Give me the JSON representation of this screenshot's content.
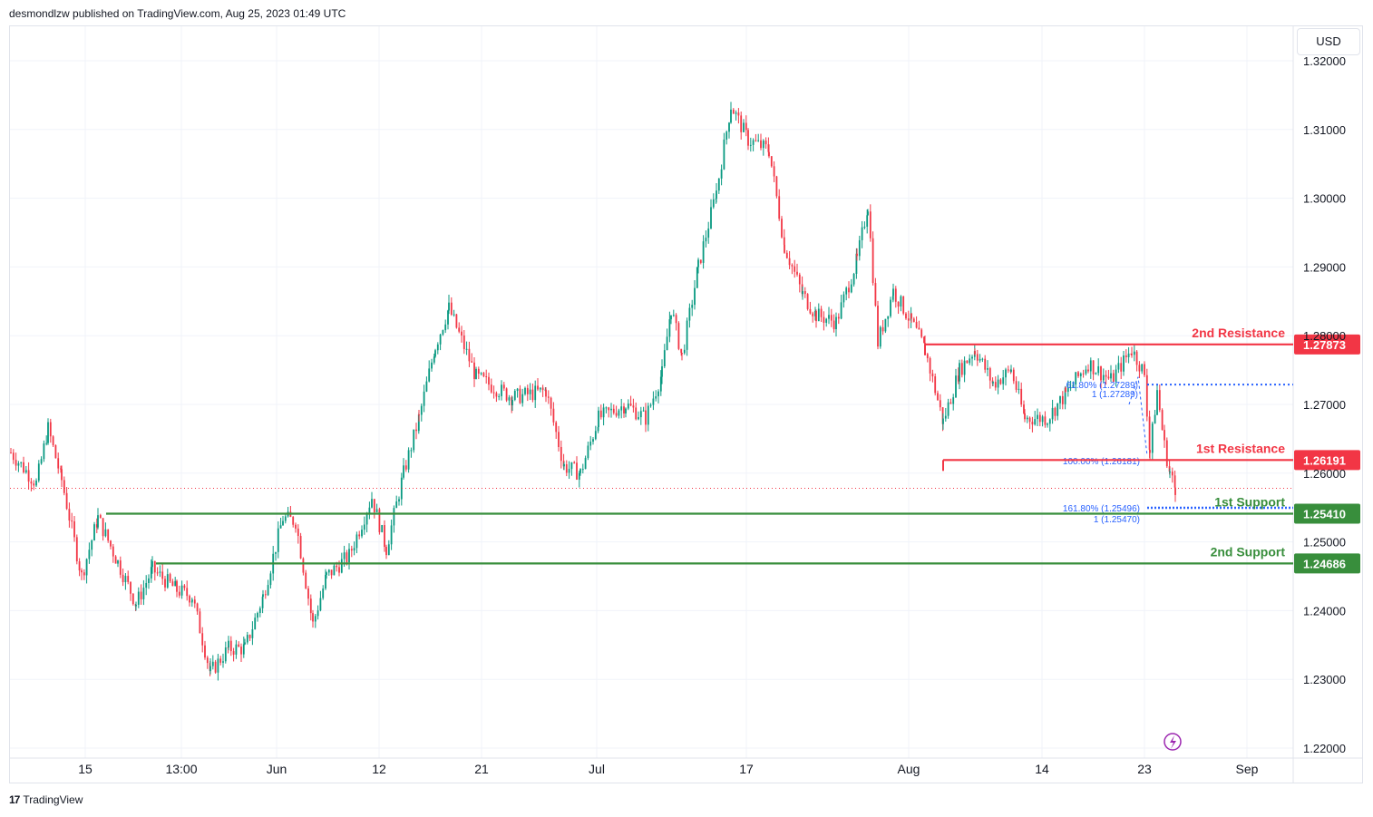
{
  "header": {
    "text": "desmondlzw published on TradingView.com, Aug 25, 2023 01:49 UTC"
  },
  "currency_button": {
    "label": "USD"
  },
  "footer": {
    "logo": "17",
    "brand": "TradingView"
  },
  "colors": {
    "up": "#089981",
    "down": "#f23645",
    "resistance": "#f23645",
    "support": "#388e3c",
    "fib": "#2962ff",
    "grid": "#f0f3fa",
    "text": "#131722",
    "lightning": "#9c27b0"
  },
  "chart_data": {
    "type": "candlestick",
    "title": "",
    "ylim": [
      1.22,
      1.323
    ],
    "y_ticks": [
      "1.32000",
      "1.31000",
      "1.30000",
      "1.29000",
      "1.28000",
      "1.27000",
      "1.26000",
      "1.25000",
      "1.24000",
      "1.23000",
      "1.22000"
    ],
    "x_ticks": [
      "15",
      "13:00",
      "Jun",
      "12",
      "21",
      "Jul",
      "17",
      "Aug",
      "14",
      "23",
      "Sep"
    ],
    "key_points": [
      [
        12,
        1.263
      ],
      [
        40,
        1.2585
      ],
      [
        53,
        1.2665
      ],
      [
        68,
        1.259
      ],
      [
        90,
        1.245
      ],
      [
        108,
        1.2535
      ],
      [
        130,
        1.247
      ],
      [
        150,
        1.241
      ],
      [
        168,
        1.246
      ],
      [
        195,
        1.243
      ],
      [
        212,
        1.242
      ],
      [
        232,
        1.231
      ],
      [
        252,
        1.2345
      ],
      [
        270,
        1.2345
      ],
      [
        290,
        1.242
      ],
      [
        312,
        1.2535
      ],
      [
        326,
        1.253
      ],
      [
        345,
        1.238
      ],
      [
        360,
        1.245
      ],
      [
        385,
        1.248
      ],
      [
        410,
        1.2565
      ],
      [
        426,
        1.249
      ],
      [
        445,
        1.26
      ],
      [
        462,
        1.268
      ],
      [
        480,
        1.2785
      ],
      [
        495,
        1.284
      ],
      [
        525,
        1.274
      ],
      [
        565,
        1.271
      ],
      [
        602,
        1.272
      ],
      [
        622,
        1.261
      ],
      [
        640,
        1.26
      ],
      [
        660,
        1.268
      ],
      [
        690,
        1.27
      ],
      [
        712,
        1.268
      ],
      [
        730,
        1.2745
      ],
      [
        740,
        1.284
      ],
      [
        752,
        1.277
      ],
      [
        770,
        1.29
      ],
      [
        790,
        1.301
      ],
      [
        806,
        1.3135
      ],
      [
        825,
        1.3085
      ],
      [
        848,
        1.307
      ],
      [
        865,
        1.293
      ],
      [
        885,
        1.286
      ],
      [
        900,
        1.283
      ],
      [
        922,
        1.282
      ],
      [
        945,
        1.291
      ],
      [
        957,
        1.299
      ],
      [
        968,
        1.279
      ],
      [
        985,
        1.2865
      ],
      [
        1005,
        1.282
      ],
      [
        1020,
        1.278
      ],
      [
        1040,
        1.2675
      ],
      [
        1058,
        1.275
      ],
      [
        1075,
        1.278
      ],
      [
        1095,
        1.273
      ],
      [
        1115,
        1.275
      ],
      [
        1130,
        1.268
      ],
      [
        1155,
        1.268
      ],
      [
        1175,
        1.2715
      ],
      [
        1200,
        1.276
      ],
      [
        1225,
        1.2735
      ],
      [
        1248,
        1.278
      ],
      [
        1262,
        1.2745
      ],
      [
        1268,
        1.263
      ],
      [
        1276,
        1.272
      ],
      [
        1284,
        1.264
      ],
      [
        1290,
        1.26
      ],
      [
        1296,
        1.2578
      ]
    ],
    "last_price": 1.2578,
    "levels": [
      {
        "name": "2nd Resistance",
        "price": "1.27873",
        "kind": "resistance"
      },
      {
        "name": "1st Resistance",
        "price": "1.26191",
        "kind": "resistance"
      },
      {
        "name": "1st Support",
        "price": "1.25410",
        "kind": "support"
      },
      {
        "name": "2nd Support",
        "price": "1.24686",
        "kind": "support"
      }
    ],
    "fib_labels": [
      "61.80% (1.27289)",
      "1 (1.27289)",
      "100.00% (1.26181)",
      "161.80% (1.25496)",
      "1 (1.25470)"
    ],
    "fib_values": [
      1.27289,
      1.25496
    ]
  }
}
